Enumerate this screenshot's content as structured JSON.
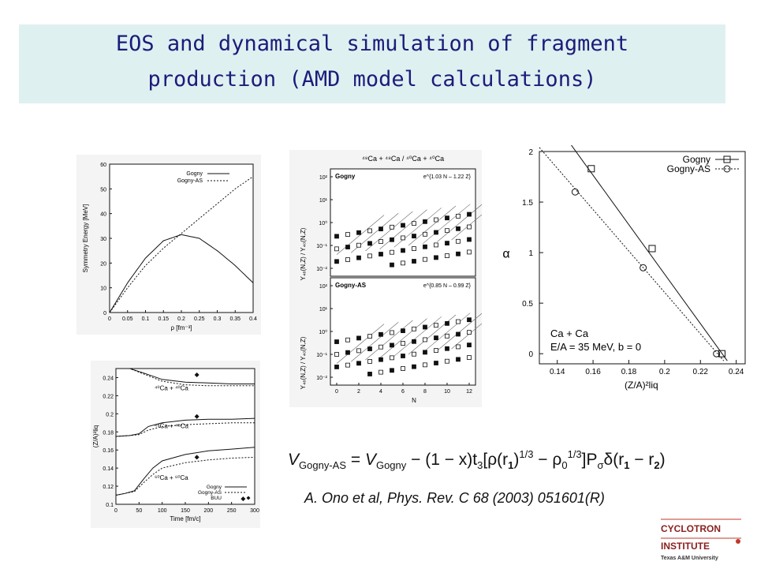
{
  "slide": {
    "title_line1": "EOS and dynamical simulation of fragment",
    "title_line2": "production (AMD model calculations)",
    "reference": "A. Ono et al, Phys. Rev. C 68 (2003) 051601(R)",
    "title_color": "#1c1c7a",
    "band_color": "#dff0f1"
  },
  "logo": {
    "line1": "CYCLOTRON",
    "line2": "INSTITUTE",
    "line3": "Texas A&M University",
    "accent": "#c0392b"
  },
  "chart_data": [
    {
      "type": "line",
      "ylabel": "Symmetry Energy [MeV]",
      "xlabel": "ρ [fm⁻³]",
      "xlim": [
        0,
        0.4
      ],
      "ylim": [
        0,
        60
      ],
      "xticks": [
        "0",
        "0.05",
        "0.1",
        "0.15",
        "0.2",
        "0.25",
        "0.3",
        "0.35",
        "0.4"
      ],
      "yticks": [
        "0",
        "10",
        "20",
        "30",
        "40",
        "50",
        "60"
      ],
      "legend": [
        "Gogny",
        "Gogny-AS"
      ],
      "series": [
        {
          "name": "Gogny",
          "style": "solid",
          "x": [
            0,
            0.05,
            0.1,
            0.15,
            0.2,
            0.25,
            0.3,
            0.35,
            0.4
          ],
          "y": [
            0,
            12,
            22,
            29,
            31.5,
            30,
            25,
            19,
            12
          ]
        },
        {
          "name": "Gogny-AS",
          "style": "dotted",
          "x": [
            0,
            0.05,
            0.1,
            0.15,
            0.2,
            0.25,
            0.3,
            0.35,
            0.4
          ],
          "y": [
            0,
            10,
            19,
            26,
            32,
            38,
            44,
            50,
            55
          ]
        }
      ]
    },
    {
      "type": "line",
      "ylabel": "(Z/A)²liq",
      "xlabel": "Time [fm/c]",
      "xlim": [
        0,
        300
      ],
      "ylim": [
        0.1,
        0.25
      ],
      "xticks": [
        "0",
        "50",
        "100",
        "150",
        "200",
        "250",
        "300"
      ],
      "yticks": [
        "0.1",
        "0.12",
        "0.14",
        "0.16",
        "0.18",
        "0.2",
        "0.22",
        "0.24"
      ],
      "legend": [
        "Gogny",
        "Gogny-AS",
        "BUU"
      ],
      "labels": [
        "⁴⁰Ca + ⁴⁰Ca",
        "⁴⁸Ca + ⁴⁸Ca",
        "⁶⁰Ca + ⁶⁰Ca"
      ],
      "series": [
        {
          "name": "Gogny",
          "group": "40Ca",
          "style": "solid",
          "x": [
            0,
            30,
            60,
            100,
            150,
            200,
            250,
            300
          ],
          "y": [
            0.25,
            0.25,
            0.245,
            0.238,
            0.235,
            0.234,
            0.233,
            0.233
          ]
        },
        {
          "name": "Gogny-AS",
          "group": "40Ca",
          "style": "dotted",
          "x": [
            0,
            30,
            60,
            100,
            150,
            200,
            250,
            300
          ],
          "y": [
            0.25,
            0.25,
            0.244,
            0.236,
            0.232,
            0.231,
            0.231,
            0.231
          ]
        },
        {
          "name": "Gogny",
          "group": "48Ca",
          "style": "solid",
          "x": [
            0,
            30,
            50,
            70,
            100,
            150,
            200,
            250,
            300
          ],
          "y": [
            0.175,
            0.176,
            0.178,
            0.186,
            0.19,
            0.193,
            0.194,
            0.194,
            0.195
          ]
        },
        {
          "name": "Gogny-AS",
          "group": "48Ca",
          "style": "dotted",
          "x": [
            0,
            30,
            50,
            70,
            100,
            150,
            200,
            250,
            300
          ],
          "y": [
            0.175,
            0.176,
            0.177,
            0.182,
            0.186,
            0.188,
            0.189,
            0.19,
            0.19
          ]
        },
        {
          "name": "Gogny",
          "group": "60Ca",
          "style": "solid",
          "x": [
            0,
            20,
            40,
            60,
            80,
            100,
            150,
            200,
            250,
            300
          ],
          "y": [
            0.11,
            0.112,
            0.115,
            0.128,
            0.14,
            0.148,
            0.155,
            0.159,
            0.161,
            0.163
          ]
        },
        {
          "name": "Gogny-AS",
          "group": "60Ca",
          "style": "dotted",
          "x": [
            0,
            20,
            40,
            60,
            80,
            100,
            150,
            200,
            250,
            300
          ],
          "y": [
            0.11,
            0.112,
            0.114,
            0.124,
            0.133,
            0.14,
            0.146,
            0.149,
            0.151,
            0.152
          ]
        },
        {
          "name": "BUU",
          "style": "marker",
          "x": [
            175,
            175,
            175,
            275
          ],
          "y": [
            0.243,
            0.197,
            0.152,
            0.106
          ]
        }
      ]
    },
    {
      "type": "scatter",
      "title": "⁴⁸Ca + ⁴⁸Ca / ⁴⁰Ca + ⁴⁰Ca",
      "ylabel": "Y₄₈(N,Z) / Y₄₀(N,Z)",
      "xlabel": "N",
      "xticks": [
        "0",
        "2",
        "4",
        "6",
        "8",
        "10",
        "12"
      ],
      "yticks": [
        "10⁻²",
        "10⁻¹",
        "10⁰",
        "10¹",
        "10²"
      ],
      "panels": [
        {
          "label": "Gogny",
          "fit": "e^{1.03 N – 1.22 Z}"
        },
        {
          "label": "Gogny-AS",
          "fit": "e^{0.85 N – 0.99 Z}"
        }
      ]
    },
    {
      "type": "line",
      "ylabel": "α",
      "xlabel": "(Z/A)²liq",
      "xlim": [
        0.13,
        0.245
      ],
      "ylim": [
        -0.1,
        2.0
      ],
      "xticks": [
        "0.14",
        "0.16",
        "0.18",
        "0.2",
        "0.22",
        "0.24"
      ],
      "yticks": [
        "0",
        "0.5",
        "1",
        "1.5",
        "2"
      ],
      "legend": [
        "Gogny",
        "Gogny-AS"
      ],
      "annotation_line1": "Ca + Ca",
      "annotation_line2": "E/A = 35 MeV,  b = 0",
      "series": [
        {
          "name": "Gogny",
          "style": "solid",
          "marker": "square",
          "x": [
            0.159,
            0.193,
            0.232
          ],
          "y": [
            1.83,
            1.04,
            0.0
          ],
          "line_x": [
            0.13,
            0.235
          ],
          "line_y": [
            2.5,
            -0.07
          ]
        },
        {
          "name": "Gogny-AS",
          "style": "dotted",
          "marker": "circle",
          "x": [
            0.15,
            0.188,
            0.229
          ],
          "y": [
            1.6,
            0.85,
            0.0
          ],
          "line_x": [
            0.13,
            0.233
          ],
          "line_y": [
            2.04,
            -0.07
          ]
        }
      ]
    }
  ],
  "formula": {
    "lhs": "V",
    "lhs_sub": "Gogny-AS",
    "eq": " = ",
    "v": "V",
    "v_sub": "Gogny",
    "rest1": " − (1 − x)t",
    "t_sub": "3",
    "rest2": "[ρ(r",
    "r1": "1",
    "rest3": ")",
    "exp1": "1/3",
    "rest4": " − ρ",
    "rho_sub": "0",
    "exp2": "1/3",
    "rest5": "]P",
    "p_sub": "σ",
    "rest6": "δ(r",
    "r1b": "1",
    "rest7": " − r",
    "r2": "2",
    "rest8": ")"
  }
}
